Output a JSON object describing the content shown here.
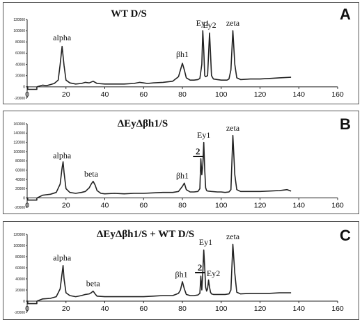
{
  "chart_data": [
    {
      "type": "line",
      "panel_letter": "A",
      "title": "WT D/S",
      "xlim": [
        0,
        160
      ],
      "x_ticks": [
        0,
        20,
        40,
        60,
        80,
        100,
        120,
        140,
        160
      ],
      "ylim": [
        -20000,
        120000
      ],
      "y_ticks": [
        "-20000",
        "0",
        "20000",
        "40000",
        "60000",
        "80000",
        "100000",
        "120000"
      ],
      "series": [
        {
          "x": [
            5,
            8,
            10,
            12,
            14,
            16,
            17,
            18,
            19,
            20,
            22,
            25,
            28,
            30,
            32,
            34,
            36,
            40,
            50,
            55,
            58,
            60,
            62,
            65,
            70,
            75,
            78,
            79,
            80,
            81,
            82,
            84,
            86,
            88,
            89,
            90,
            90.5,
            91,
            91.5,
            92,
            93,
            94,
            94.5,
            95,
            96,
            98,
            100,
            102,
            103,
            104,
            105,
            106,
            107,
            108,
            110,
            115,
            120,
            125,
            130,
            136
          ],
          "y": [
            0,
            3000,
            2000,
            4000,
            6000,
            12000,
            40000,
            72000,
            38000,
            12000,
            7000,
            5000,
            6000,
            8000,
            7000,
            10000,
            6000,
            5000,
            5000,
            6000,
            8000,
            7000,
            6000,
            7000,
            8000,
            10000,
            18000,
            30000,
            42000,
            30000,
            16000,
            12000,
            12000,
            13000,
            15000,
            40000,
            100000,
            65000,
            20000,
            18000,
            20000,
            96000,
            60000,
            20000,
            14000,
            13000,
            12000,
            12000,
            12000,
            14000,
            30000,
            100000,
            40000,
            16000,
            13000,
            14000,
            14000,
            15000,
            16000,
            17000
          ]
        }
      ],
      "annotations": [
        "alpha",
        "βh1",
        "Ey1",
        "Ey2",
        "zeta"
      ]
    },
    {
      "type": "line",
      "panel_letter": "B",
      "title": "ΔEyΔβh1/S",
      "xlim": [
        0,
        160
      ],
      "x_ticks": [
        0,
        20,
        40,
        60,
        80,
        100,
        120,
        140,
        160
      ],
      "ylim": [
        -20000,
        160000
      ],
      "y_ticks": [
        "-20000",
        "0",
        "20000",
        "40000",
        "60000",
        "80000",
        "100000",
        "120000",
        "140000",
        "160000"
      ],
      "series": [
        {
          "x": [
            5,
            8,
            12,
            15,
            17,
            18,
            18.5,
            19,
            20,
            22,
            25,
            28,
            30,
            32,
            33,
            34,
            35,
            36,
            38,
            40,
            45,
            50,
            55,
            60,
            65,
            70,
            75,
            78,
            80,
            81,
            82,
            84,
            86,
            88,
            89,
            89.5,
            90,
            90.5,
            91,
            91.5,
            92,
            92.5,
            93,
            95,
            98,
            100,
            102,
            104,
            105,
            106,
            107,
            108,
            110,
            115,
            120,
            125,
            130,
            134,
            136
          ],
          "y": [
            0,
            6000,
            8000,
            12000,
            30000,
            65000,
            78000,
            55000,
            20000,
            12000,
            10000,
            12000,
            14000,
            22000,
            30000,
            36000,
            28000,
            16000,
            10000,
            9000,
            10000,
            9000,
            10000,
            10000,
            11000,
            12000,
            12000,
            14000,
            25000,
            32000,
            18000,
            13000,
            13000,
            14000,
            20000,
            85000,
            50000,
            70000,
            120000,
            60000,
            22000,
            16000,
            15000,
            14000,
            13000,
            13000,
            12000,
            13000,
            18000,
            135000,
            50000,
            18000,
            14000,
            14000,
            14000,
            15000,
            16000,
            18000,
            15000
          ]
        }
      ],
      "annotations": [
        "alpha",
        "beta",
        "βh1",
        "2",
        "Ey1",
        "zeta"
      ]
    },
    {
      "type": "line",
      "panel_letter": "C",
      "title": "ΔEyΔβh1/S + WT D/S",
      "xlim": [
        0,
        160
      ],
      "x_ticks": [
        0,
        20,
        40,
        60,
        80,
        100,
        120,
        140,
        160
      ],
      "ylim": [
        -20000,
        120000
      ],
      "y_ticks": [
        "-20000",
        "0",
        "20000",
        "40000",
        "60000",
        "80000",
        "100000",
        "120000"
      ],
      "series": [
        {
          "x": [
            5,
            8,
            12,
            15,
            17,
            18,
            18.5,
            19,
            20,
            22,
            25,
            28,
            30,
            32,
            33,
            34,
            35,
            36,
            40,
            45,
            50,
            55,
            60,
            65,
            70,
            75,
            78,
            79,
            80,
            81,
            82,
            84,
            86,
            88,
            89,
            89.5,
            90,
            90.5,
            91,
            91.5,
            92,
            92.5,
            93,
            93.5,
            94,
            94.5,
            95,
            96,
            98,
            100,
            102,
            104,
            105,
            106,
            107,
            108,
            110,
            115,
            120,
            125,
            130,
            136
          ],
          "y": [
            0,
            4000,
            5000,
            8000,
            22000,
            50000,
            64000,
            40000,
            15000,
            10000,
            8000,
            10000,
            12000,
            13000,
            15000,
            18000,
            13000,
            9000,
            8000,
            8000,
            8000,
            8000,
            8000,
            9000,
            10000,
            10000,
            14000,
            20000,
            35000,
            22000,
            12000,
            10000,
            10000,
            11000,
            14000,
            45000,
            20000,
            50000,
            92000,
            60000,
            25000,
            18000,
            22000,
            38000,
            25000,
            16000,
            13000,
            12000,
            12000,
            12000,
            12000,
            13000,
            20000,
            102000,
            50000,
            16000,
            13000,
            14000,
            14000,
            14000,
            15000,
            15000
          ]
        }
      ],
      "annotations": [
        "alpha",
        "beta",
        "βh1",
        "2",
        "Ey1",
        "Ey2",
        "zeta"
      ]
    }
  ]
}
